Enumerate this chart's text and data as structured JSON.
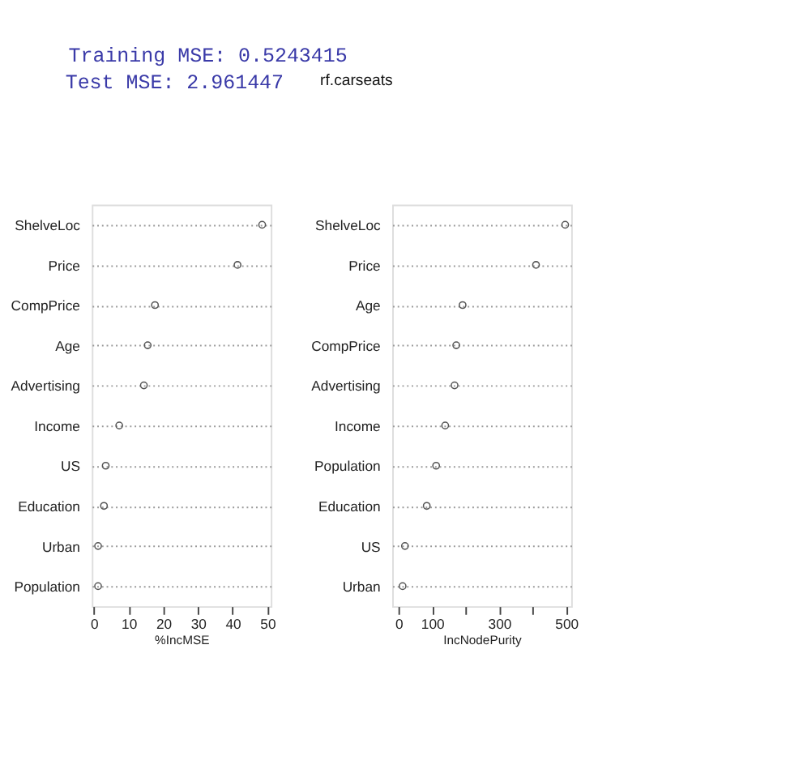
{
  "chart_data": [
    {
      "type": "other",
      "title": "rf.carseats",
      "annotations": [
        "Training MSE:  0.5243415",
        "Test MSE:  2.961447"
      ]
    },
    {
      "type": "scatter",
      "categories": [
        "ShelveLoc",
        "Price",
        "CompPrice",
        "Age",
        "Advertising",
        "Income",
        "US",
        "Education",
        "Urban",
        "Population"
      ],
      "series": [
        {
          "color": "#555555",
          "values": [
            48.5,
            41.4,
            17.6,
            15.5,
            14.4,
            7.3,
            3.4,
            2.9,
            1.2,
            1.2
          ]
        }
      ],
      "xlabel": "%IncMSE",
      "orientation": "horizontal",
      "xlim": [
        -0.6,
        51
      ],
      "xticks": [
        0,
        10,
        20,
        30,
        40,
        50
      ],
      "grid": "y",
      "marker": "circle"
    },
    {
      "type": "scatter",
      "categories": [
        "ShelveLoc",
        "Price",
        "Age",
        "CompPrice",
        "Advertising",
        "Income",
        "Population",
        "Education",
        "US",
        "Urban"
      ],
      "series": [
        {
          "color": "#555555",
          "values": [
            497,
            410,
            191,
            172,
            167,
            139,
            112,
            84,
            19,
            12
          ]
        }
      ],
      "xlabel": "IncNodePurity",
      "orientation": "horizontal",
      "xlim": [
        -19,
        515
      ],
      "xticks": [
        0,
        100,
        {
          "value": 200,
          "label": null
        },
        300,
        {
          "value": 400,
          "label": null
        },
        500
      ],
      "grid": "y",
      "marker": "circle"
    }
  ]
}
